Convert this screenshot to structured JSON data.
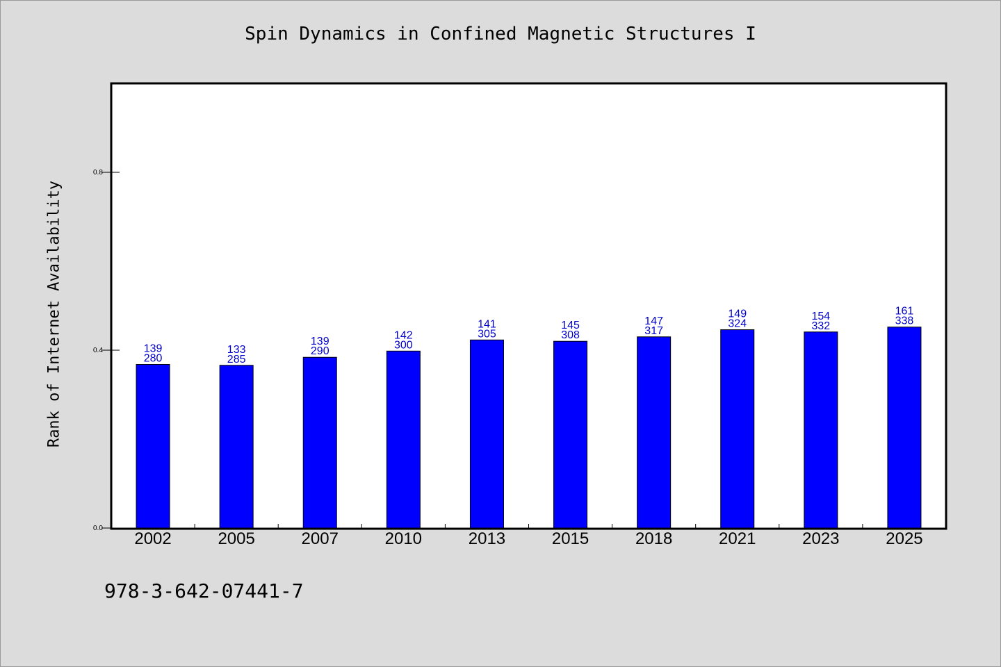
{
  "chart_data": {
    "type": "bar",
    "title": "Spin Dynamics in Confined Magnetic Structures I",
    "ylabel": "Rank of Internet Availability",
    "xlabel": "",
    "categories": [
      "2002",
      "2005",
      "2007",
      "2010",
      "2013",
      "2015",
      "2018",
      "2021",
      "2023",
      "2025"
    ],
    "values": [
      0.368,
      0.366,
      0.384,
      0.398,
      0.423,
      0.42,
      0.43,
      0.446,
      0.441,
      0.452
    ],
    "label_top": [
      "139",
      "133",
      "139",
      "142",
      "141",
      "145",
      "147",
      "149",
      "154",
      "161"
    ],
    "label_bottom": [
      "280",
      "285",
      "290",
      "300",
      "305",
      "308",
      "317",
      "324",
      "332",
      "338"
    ],
    "ylim": [
      0.0,
      1.0
    ],
    "yticks": [
      0.0,
      0.4,
      0.8
    ],
    "ytick_labels": [
      "0.0",
      "0.4",
      "0.8"
    ],
    "grid": false,
    "legend": "none",
    "colors": {
      "bar": "#0000ff",
      "data_label": "#0000cc",
      "background": "#dcdcdc",
      "plot_bg": "#ffffff"
    }
  },
  "footer": {
    "code": "978-3-642-07441-7"
  }
}
